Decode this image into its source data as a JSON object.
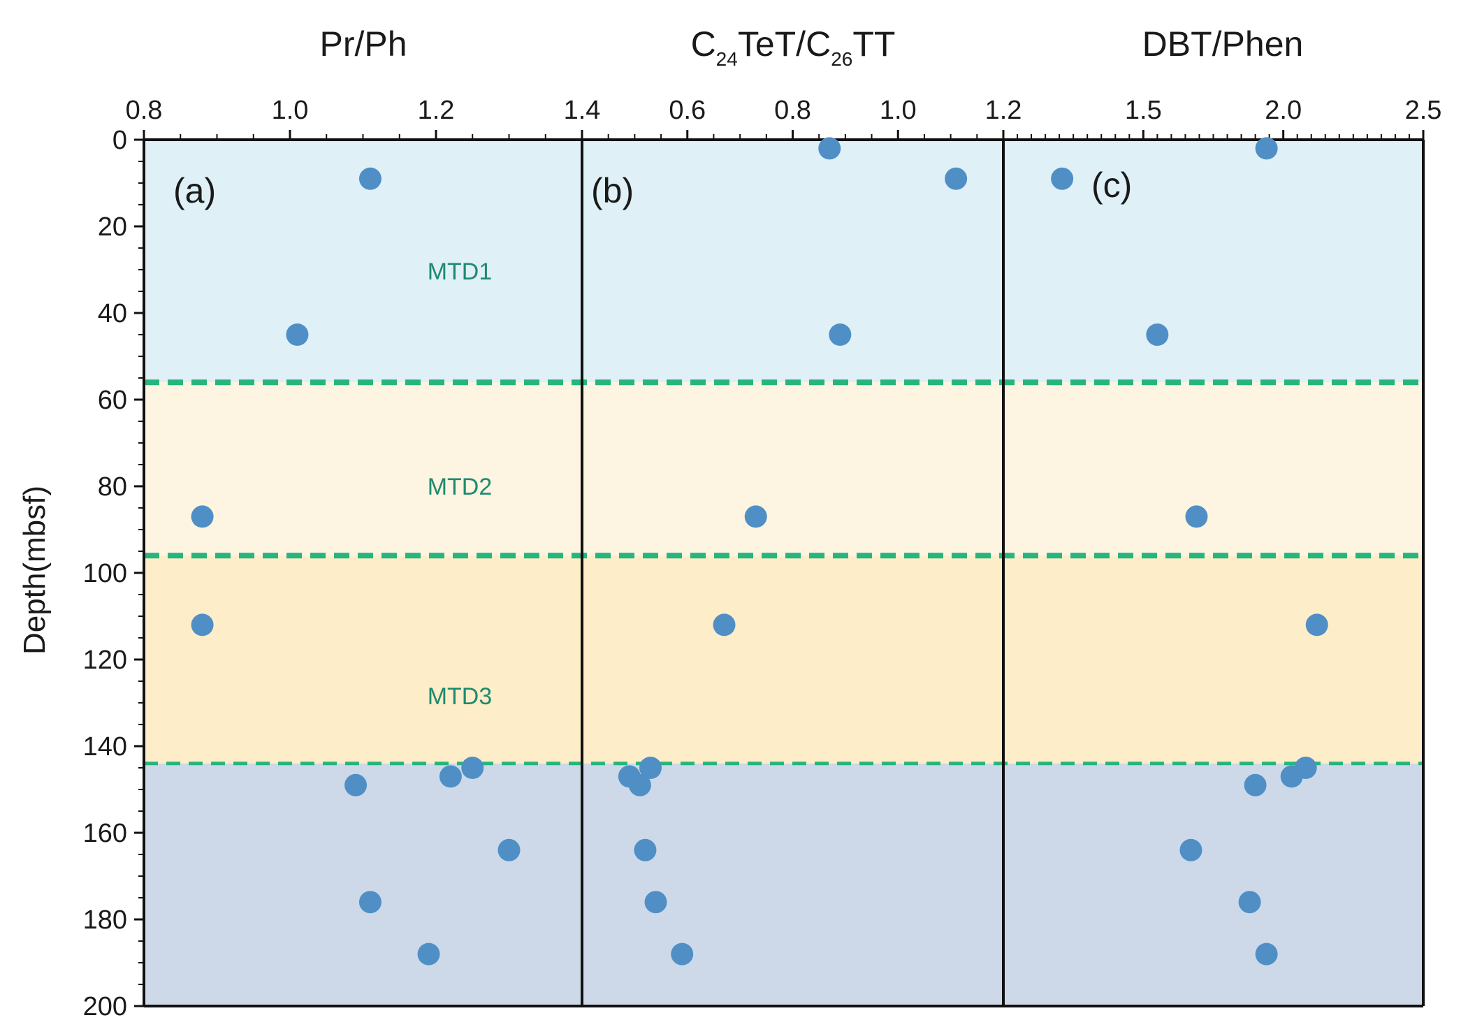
{
  "chart_data": {
    "type": "scatter",
    "ylabel": "Depth(mbsf)",
    "ylim": [
      0,
      200
    ],
    "yticks": [
      "0",
      "20",
      "40",
      "60",
      "80",
      "100",
      "120",
      "140",
      "160",
      "180",
      "200"
    ],
    "depths": [
      2,
      9,
      45,
      87,
      112,
      145,
      147,
      149,
      164,
      176,
      188
    ],
    "zones": [
      {
        "name": "MTD1",
        "top": 0,
        "bottom": 56,
        "color": "#dff0f7"
      },
      {
        "name": "MTD2",
        "top": 56,
        "bottom": 96,
        "color": "#fdf4e1"
      },
      {
        "name": "MTD3",
        "top": 96,
        "bottom": 144,
        "color": "#fdedc9"
      },
      {
        "name": "",
        "top": 144,
        "bottom": 200,
        "color": "#cdd9e8"
      }
    ],
    "boundary_color": "#26b57d",
    "boundaries": [
      56,
      96,
      144
    ],
    "point_color": "#4f8fc6",
    "panels": [
      {
        "letter": "(a)",
        "xlabel": "Pr/Ph",
        "xlim": [
          0.8,
          1.4
        ],
        "xticks": [
          "0.8",
          "1.0",
          "1.2",
          "1.4"
        ],
        "points": [
          {
            "x": 1.11,
            "depth": 9
          },
          {
            "x": 1.01,
            "depth": 45
          },
          {
            "x": 0.88,
            "depth": 87
          },
          {
            "x": 0.88,
            "depth": 112
          },
          {
            "x": 1.25,
            "depth": 145
          },
          {
            "x": 1.22,
            "depth": 147
          },
          {
            "x": 1.09,
            "depth": 149
          },
          {
            "x": 1.3,
            "depth": 164
          },
          {
            "x": 1.11,
            "depth": 176
          },
          {
            "x": 1.19,
            "depth": 188
          }
        ]
      },
      {
        "letter": "(b)",
        "xlabel_main": "C",
        "xlabel_sub1": "24",
        "xlabel_mid": "TeT/C",
        "xlabel_sub2": "26",
        "xlabel_end": "TT",
        "xlim": [
          0.4,
          1.2
        ],
        "xticks": [
          "0.6",
          "0.8",
          "1.0",
          "1.2"
        ],
        "points": [
          {
            "x": 0.87,
            "depth": 2
          },
          {
            "x": 1.11,
            "depth": 9
          },
          {
            "x": 0.89,
            "depth": 45
          },
          {
            "x": 0.73,
            "depth": 87
          },
          {
            "x": 0.67,
            "depth": 112
          },
          {
            "x": 0.53,
            "depth": 145
          },
          {
            "x": 0.49,
            "depth": 147
          },
          {
            "x": 0.51,
            "depth": 149
          },
          {
            "x": 0.52,
            "depth": 164
          },
          {
            "x": 0.54,
            "depth": 176
          },
          {
            "x": 0.59,
            "depth": 188
          }
        ]
      },
      {
        "letter": "(c)",
        "xlabel": "DBT/Phen",
        "xlim": [
          1.0,
          2.5
        ],
        "xticks": [
          "1.5",
          "2.0",
          "2.5"
        ],
        "points": [
          {
            "x": 1.94,
            "depth": 2
          },
          {
            "x": 1.21,
            "depth": 9
          },
          {
            "x": 1.55,
            "depth": 45
          },
          {
            "x": 1.69,
            "depth": 87
          },
          {
            "x": 2.12,
            "depth": 112
          },
          {
            "x": 2.08,
            "depth": 145
          },
          {
            "x": 2.03,
            "depth": 147
          },
          {
            "x": 1.9,
            "depth": 149
          },
          {
            "x": 1.67,
            "depth": 164
          },
          {
            "x": 1.88,
            "depth": 176
          },
          {
            "x": 1.94,
            "depth": 188
          }
        ]
      }
    ]
  }
}
